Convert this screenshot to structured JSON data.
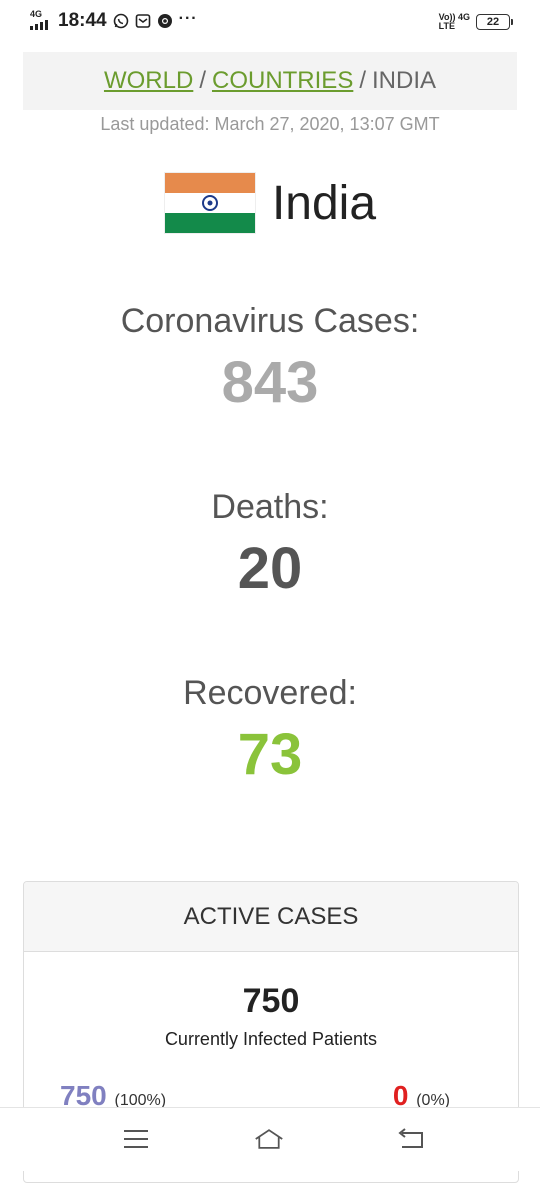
{
  "status_bar": {
    "network": "4G",
    "time": "18:44",
    "more": "···",
    "volte_top": "Vo)) 4G",
    "volte_bottom": "LTE",
    "battery": "22",
    "icons": [
      "whatsapp-icon",
      "message-icon",
      "chrome-icon"
    ]
  },
  "breadcrumb": {
    "world": "WORLD",
    "countries": "COUNTRIES",
    "current": "INDIA",
    "sep": "/"
  },
  "last_updated": "Last updated: March 27, 2020, 13:07 GMT",
  "country": {
    "name": "India",
    "flag_colors": [
      "#e68a4c",
      "#ffffff",
      "#138a4a"
    ],
    "chakra_color": "#1d3a8a"
  },
  "stats": {
    "cases_label": "Coronavirus Cases:",
    "cases_value": "843",
    "deaths_label": "Deaths:",
    "deaths_value": "20",
    "recovered_label": "Recovered:",
    "recovered_value": "73",
    "colors": {
      "cases": "#aaaaaa",
      "deaths": "#555555",
      "recovered": "#8ac33a"
    }
  },
  "active_cases": {
    "title": "ACTIVE CASES",
    "total": "750",
    "subtitle": "Currently Infected Patients",
    "left_value": "750",
    "left_pct": "(100%)",
    "right_value": "0",
    "right_pct": "(0%)"
  },
  "nav": {
    "icons": [
      "menu-icon",
      "home-icon",
      "back-icon"
    ]
  }
}
